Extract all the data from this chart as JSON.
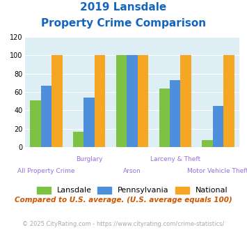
{
  "title_line1": "2019 Lansdale",
  "title_line2": "Property Crime Comparison",
  "categories": [
    "All Property Crime",
    "Burglary",
    "Arson",
    "Larceny & Theft",
    "Motor Vehicle Theft"
  ],
  "lansdale": [
    51,
    17,
    100,
    64,
    8
  ],
  "pennsylvania": [
    67,
    54,
    100,
    73,
    45
  ],
  "national": [
    100,
    100,
    100,
    100,
    100
  ],
  "color_lansdale": "#7dc242",
  "color_pennsylvania": "#4d8fdb",
  "color_national": "#f5a623",
  "bg_color": "#ddeef4",
  "title_color": "#1565c0",
  "xlabel_color": "#9370db",
  "ylabel_max": 120,
  "ylabel_min": 0,
  "yticks": [
    0,
    20,
    40,
    60,
    80,
    100,
    120
  ],
  "footnote1": "Compared to U.S. average. (U.S. average equals 100)",
  "footnote2": "© 2025 CityRating.com - https://www.cityrating.com/crime-statistics/",
  "footnote1_color": "#cc5500",
  "footnote2_color": "#aaaaaa",
  "footnote2_link_color": "#4d8fdb",
  "legend_labels": [
    "Lansdale",
    "Pennsylvania",
    "National"
  ],
  "bar_width": 0.25,
  "group_positions": [
    0,
    1,
    2,
    3,
    4
  ]
}
